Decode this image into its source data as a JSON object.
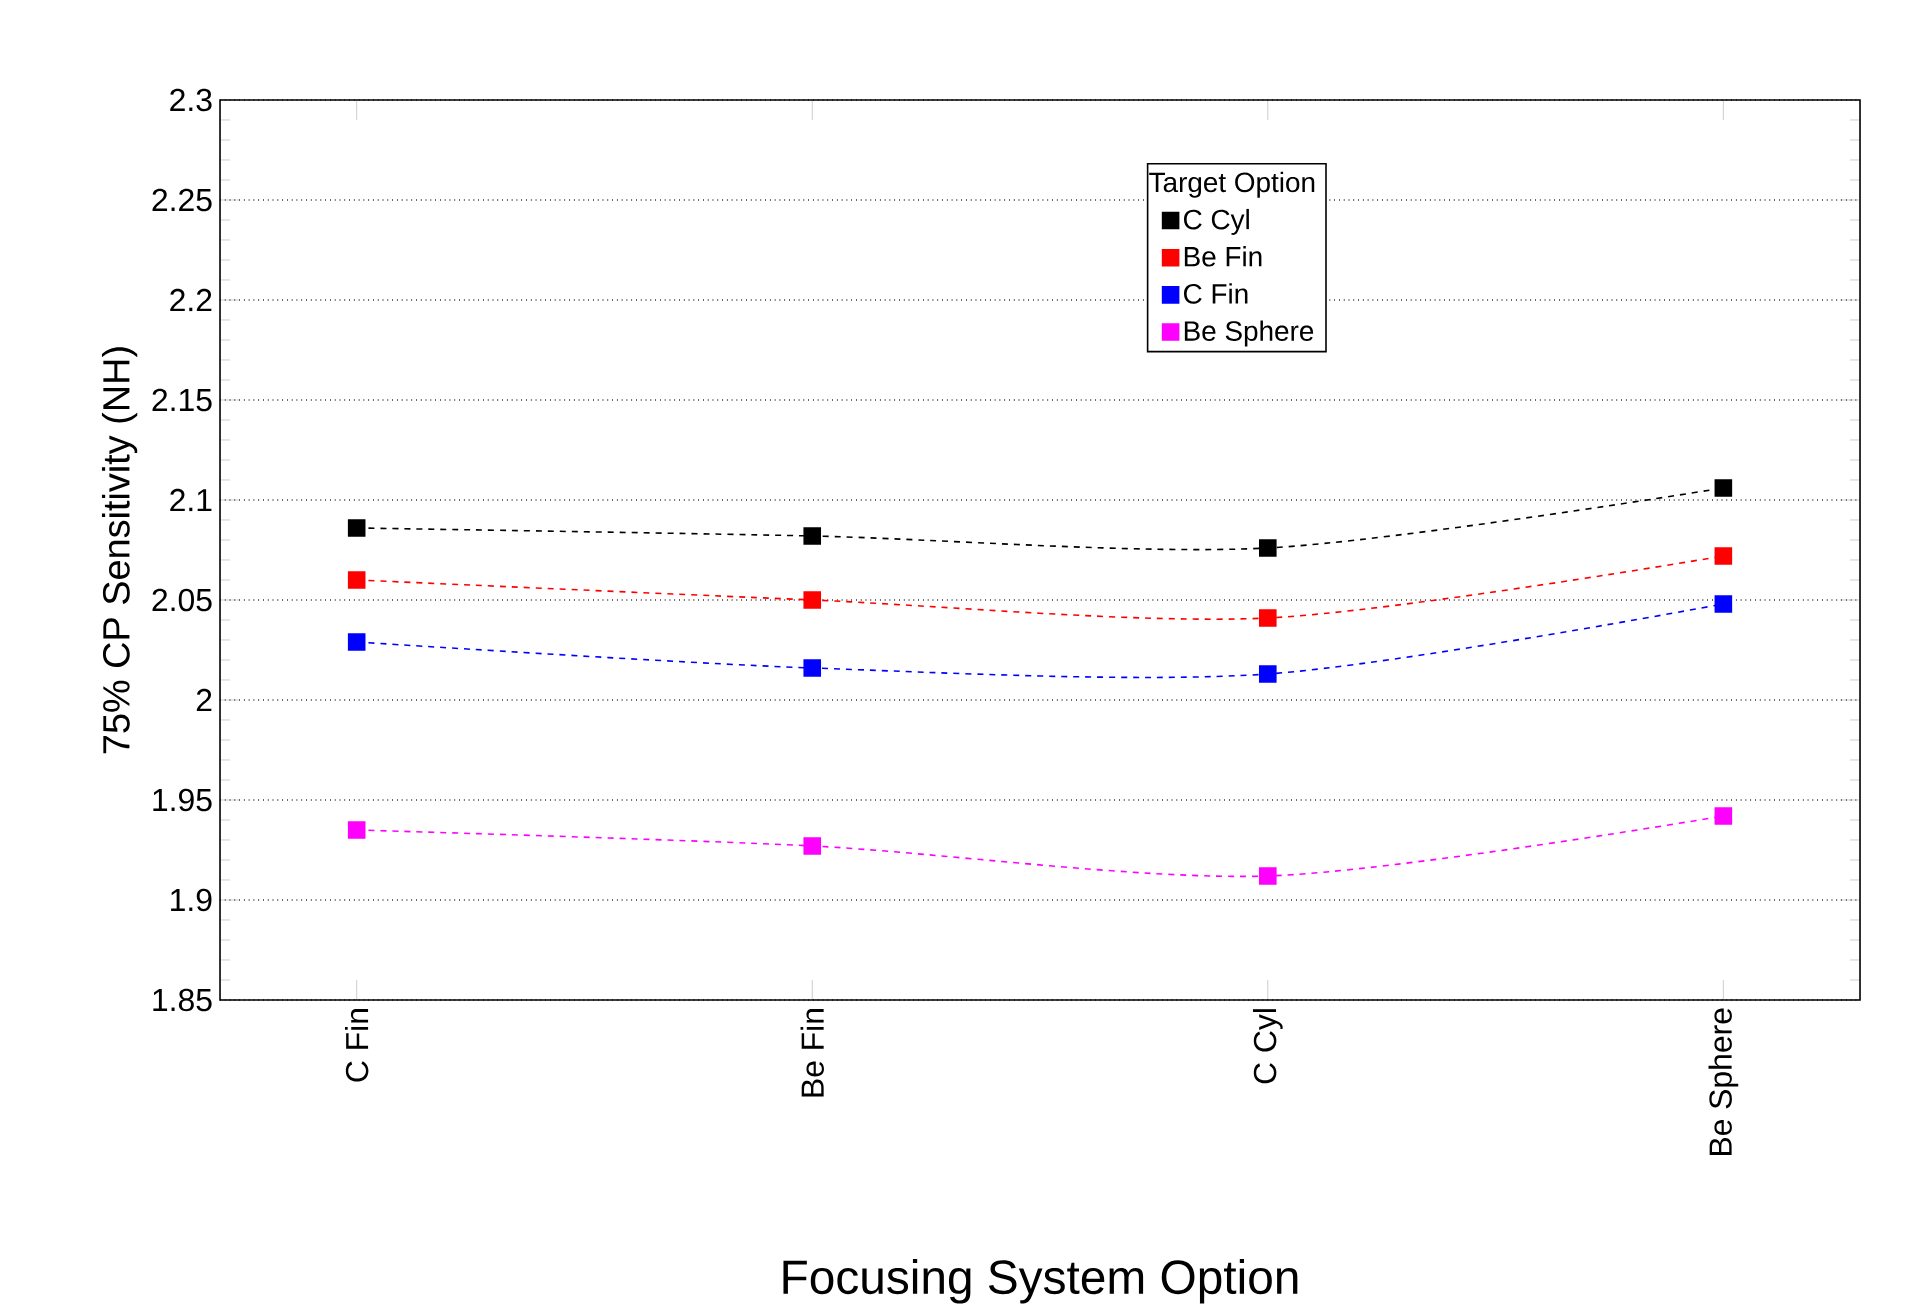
{
  "chart_data": {
    "type": "line",
    "xlabel": "Focusing System Option",
    "ylabel": "75% CP Sensitivity (NH)",
    "legend_title": "Target Option",
    "categories": [
      "C Fin",
      "Be Fin",
      "C Cyl",
      "Be Sphere"
    ],
    "series": [
      {
        "name": "C Cyl",
        "color": "#000000",
        "values": [
          2.086,
          2.082,
          2.076,
          2.106
        ]
      },
      {
        "name": "Be Fin",
        "color": "#ff0000",
        "values": [
          2.06,
          2.05,
          2.041,
          2.072
        ]
      },
      {
        "name": "C Fin",
        "color": "#0000ff",
        "values": [
          2.029,
          2.016,
          2.013,
          2.048
        ]
      },
      {
        "name": "Be Sphere",
        "color": "#ff00ff",
        "values": [
          1.935,
          1.927,
          1.912,
          1.942
        ]
      }
    ],
    "ylim": [
      1.85,
      2.3
    ],
    "yticks": [
      1.85,
      1.9,
      1.95,
      2,
      2.05,
      2.1,
      2.15,
      2.2,
      2.25,
      2.3
    ],
    "grid": "y",
    "legend": "top",
    "marker": "square",
    "line_style": "dashed"
  }
}
